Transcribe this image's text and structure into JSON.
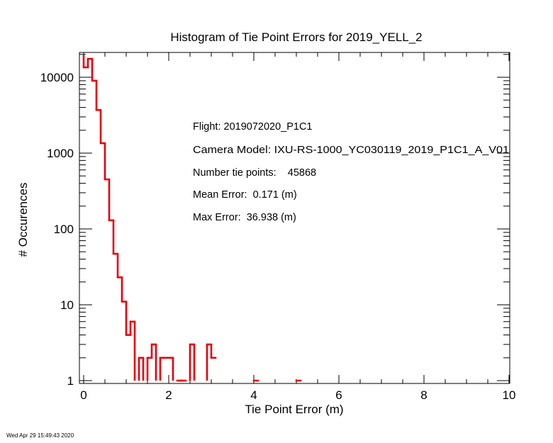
{
  "chart_data": {
    "type": "histogram",
    "title": "Histogram of Tie Point Errors for 2019_YELL_2",
    "xlabel": "Tie Point Error (m)",
    "ylabel": "# Occurences",
    "x_scale": "linear",
    "y_scale": "log",
    "xlim": [
      0,
      10
    ],
    "ylim": [
      1,
      20000
    ],
    "x_ticks": [
      0,
      2,
      4,
      6,
      8,
      10
    ],
    "x_tick_labels": [
      "0",
      "2",
      "4",
      "6",
      "8",
      "10"
    ],
    "y_ticks": [
      1,
      10,
      100,
      1000,
      10000
    ],
    "y_tick_labels": [
      "1",
      "10",
      "100",
      "1000",
      "10000"
    ],
    "grid": false,
    "series_color": "#e8000b",
    "bin_width": 0.1,
    "bins": [
      {
        "x0": 0.0,
        "x1": 0.1,
        "count": 13500
      },
      {
        "x0": 0.1,
        "x1": 0.2,
        "count": 17500
      },
      {
        "x0": 0.2,
        "x1": 0.3,
        "count": 9000
      },
      {
        "x0": 0.3,
        "x1": 0.4,
        "count": 3700
      },
      {
        "x0": 0.4,
        "x1": 0.5,
        "count": 1350
      },
      {
        "x0": 0.5,
        "x1": 0.6,
        "count": 450
      },
      {
        "x0": 0.6,
        "x1": 0.7,
        "count": 130
      },
      {
        "x0": 0.7,
        "x1": 0.8,
        "count": 47
      },
      {
        "x0": 0.8,
        "x1": 0.9,
        "count": 23
      },
      {
        "x0": 0.9,
        "x1": 1.0,
        "count": 11
      },
      {
        "x0": 1.0,
        "x1": 1.1,
        "count": 4
      },
      {
        "x0": 1.1,
        "x1": 1.2,
        "count": 6
      },
      {
        "x0": 1.2,
        "x1": 1.3,
        "count": 0
      },
      {
        "x0": 1.3,
        "x1": 1.4,
        "count": 2
      },
      {
        "x0": 1.4,
        "x1": 1.5,
        "count": 0
      },
      {
        "x0": 1.5,
        "x1": 1.6,
        "count": 2
      },
      {
        "x0": 1.6,
        "x1": 1.7,
        "count": 3
      },
      {
        "x0": 1.7,
        "x1": 1.8,
        "count": 0
      },
      {
        "x0": 1.8,
        "x1": 1.9,
        "count": 2
      },
      {
        "x0": 1.9,
        "x1": 2.0,
        "count": 2
      },
      {
        "x0": 2.0,
        "x1": 2.1,
        "count": 2
      },
      {
        "x0": 2.1,
        "x1": 2.2,
        "count": 0
      },
      {
        "x0": 2.2,
        "x1": 2.3,
        "count": 1
      },
      {
        "x0": 2.3,
        "x1": 2.4,
        "count": 1
      },
      {
        "x0": 2.4,
        "x1": 2.5,
        "count": 0
      },
      {
        "x0": 2.5,
        "x1": 2.6,
        "count": 3
      },
      {
        "x0": 2.6,
        "x1": 2.7,
        "count": 0
      },
      {
        "x0": 2.7,
        "x1": 2.8,
        "count": 0
      },
      {
        "x0": 2.8,
        "x1": 2.9,
        "count": 0
      },
      {
        "x0": 2.9,
        "x1": 3.0,
        "count": 3
      },
      {
        "x0": 3.0,
        "x1": 3.1,
        "count": 2
      },
      {
        "x0": 4.0,
        "x1": 4.1,
        "count": 1
      },
      {
        "x0": 5.0,
        "x1": 5.1,
        "count": 1
      }
    ],
    "annotations": [
      "Flight: 2019072020_P1C1",
      "Camera Model: IXU-RS-1000_YC030119_2019_P1C1_A_V01",
      "Number tie points:    45868",
      "Mean Error:  0.171 (m)",
      "Max Error:  36.938 (m)"
    ]
  },
  "timestamp": "Wed Apr 29 15:49:43 2020"
}
